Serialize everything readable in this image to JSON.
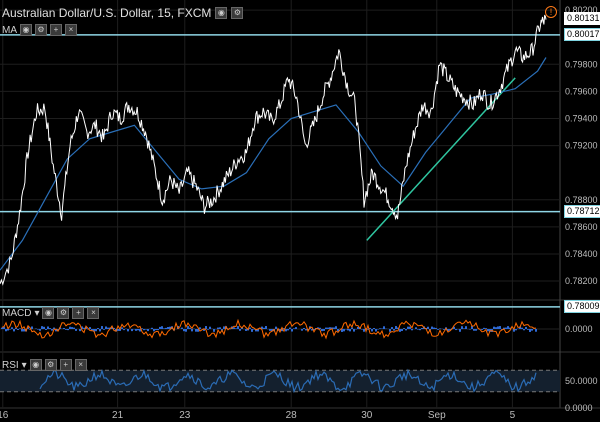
{
  "header": {
    "symbol": "Australian Dollar/U.S. Dollar, 15, FXCM",
    "icons": [
      "eye-icon",
      "gear-icon"
    ]
  },
  "indicators": {
    "ma_label": "MA",
    "macd_label": "MACD",
    "rsi_label": "RSI"
  },
  "colors": {
    "background": "#000000",
    "price": "#ffffff",
    "ma": "#2a6fb8",
    "hlines": "#8fd6e6",
    "trendline": "#2fc5a0",
    "macd_signal": "#ff6a00",
    "macd_hist": "#2e6ad6",
    "rsi": "#2b6cb5",
    "grid": "#1e1e1e"
  },
  "chart_data": [
    {
      "type": "line",
      "panel": "price",
      "title": "Australian Dollar/U.S. Dollar, 15, FXCM",
      "x_ticks": [
        "16",
        "21",
        "23",
        "28",
        "30",
        "Sep",
        "5"
      ],
      "y_ticks": [
        "0.80200",
        "0.79800",
        "0.79600",
        "0.79400",
        "0.79200",
        "0.78800",
        "0.78600",
        "0.78400",
        "0.78200"
      ],
      "ylim": [
        0.7806,
        0.8026
      ],
      "last_price": "0.80131",
      "price_labels": [
        "0.80017",
        "0.78712",
        "0.78009"
      ],
      "horizontal_levels": [
        0.80017,
        0.78712,
        0.78009
      ],
      "trendline": [
        [
          0.655,
          0.785
        ],
        [
          0.92,
          0.797
        ]
      ],
      "series": [
        {
          "x": [
            0,
            0.02,
            0.035,
            0.05,
            0.065,
            0.08,
            0.095,
            0.11,
            0.125,
            0.14,
            0.155,
            0.17,
            0.185,
            0.2,
            0.215,
            0.23,
            0.245,
            0.26,
            0.275,
            0.29,
            0.305,
            0.32,
            0.335,
            0.35,
            0.365,
            0.38,
            0.395,
            0.41,
            0.425,
            0.44,
            0.455,
            0.47,
            0.485,
            0.5,
            0.515,
            0.53,
            0.545,
            0.56,
            0.575,
            0.59,
            0.605,
            0.62,
            0.635,
            0.65,
            0.665,
            0.68,
            0.695,
            0.71,
            0.725,
            0.74,
            0.755,
            0.77,
            0.785,
            0.8,
            0.815,
            0.83,
            0.845,
            0.86,
            0.875,
            0.89,
            0.905,
            0.92,
            0.935,
            0.95,
            0.965,
            0.975
          ],
          "values": [
            0.7818,
            0.7835,
            0.787,
            0.7915,
            0.7945,
            0.7948,
            0.7905,
            0.787,
            0.792,
            0.7945,
            0.793,
            0.7935,
            0.7925,
            0.7945,
            0.794,
            0.795,
            0.7945,
            0.793,
            0.7905,
            0.788,
            0.7895,
            0.7885,
            0.79,
            0.789,
            0.7875,
            0.788,
            0.789,
            0.79,
            0.791,
            0.7915,
            0.794,
            0.7945,
            0.7938,
            0.795,
            0.797,
            0.7955,
            0.792,
            0.7935,
            0.7955,
            0.797,
            0.799,
            0.7965,
            0.795,
            0.788,
            0.79,
            0.789,
            0.788,
            0.7868,
            0.7905,
            0.793,
            0.795,
            0.7945,
            0.798,
            0.797,
            0.796,
            0.7955,
            0.795,
            0.796,
            0.795,
            0.796,
            0.7975,
            0.799,
            0.7985,
            0.799,
            0.801,
            0.8013
          ]
        },
        {
          "x": [
            0,
            0.04,
            0.08,
            0.12,
            0.16,
            0.2,
            0.24,
            0.28,
            0.32,
            0.36,
            0.4,
            0.44,
            0.48,
            0.52,
            0.56,
            0.6,
            0.64,
            0.68,
            0.72,
            0.76,
            0.8,
            0.84,
            0.88,
            0.92,
            0.96,
            0.975
          ],
          "values": [
            0.7828,
            0.785,
            0.788,
            0.791,
            0.7925,
            0.793,
            0.7935,
            0.7915,
            0.7895,
            0.7888,
            0.789,
            0.79,
            0.7925,
            0.794,
            0.7945,
            0.795,
            0.793,
            0.7905,
            0.789,
            0.7915,
            0.7935,
            0.7955,
            0.7958,
            0.7962,
            0.7975,
            0.7985
          ]
        }
      ]
    },
    {
      "type": "line",
      "panel": "macd",
      "y_ticks": [
        "0.0000"
      ],
      "ylim": [
        -1,
        1
      ]
    },
    {
      "type": "line",
      "panel": "rsi",
      "y_ticks": [
        "50.0000",
        "0.0000"
      ],
      "ylim": [
        0,
        100
      ]
    }
  ]
}
